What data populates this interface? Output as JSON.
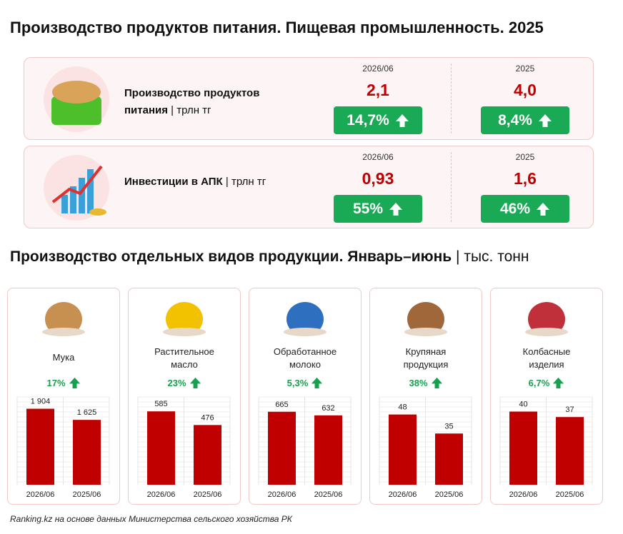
{
  "header": {
    "title": "Производство продуктов питания. Пищевая промышленность. 2025"
  },
  "kpis": [
    {
      "label": "Производство продуктов питания",
      "unit": "трлн тг",
      "columns": [
        {
          "period": "2026/06",
          "value": "2,1",
          "change": "14,7%"
        },
        {
          "period": "2025",
          "value": "4,0",
          "change": "8,4%"
        }
      ]
    },
    {
      "label": "Инвестиции в АПК",
      "unit": "трлн тг",
      "columns": [
        {
          "period": "2026/06",
          "value": "0,93",
          "change": "55%"
        },
        {
          "period": "2025",
          "value": "1,6",
          "change": "46%"
        }
      ]
    }
  ],
  "section": {
    "title": "Производство отдельных видов продукции. Январь–июнь",
    "unit": "тыс. тонн"
  },
  "chart_data": [
    {
      "type": "bar",
      "title": "Мука",
      "change": "17%",
      "categories": [
        "2026/06",
        "2025/06"
      ],
      "values": [
        1904,
        1625
      ],
      "value_labels": [
        "1 904",
        "1 625"
      ],
      "ylim": [
        0,
        2200
      ],
      "color": "#c00000"
    },
    {
      "type": "bar",
      "title": "Растительное масло",
      "change": "23%",
      "categories": [
        "2026/06",
        "2025/06"
      ],
      "values": [
        585,
        476
      ],
      "ylim": [
        0,
        700
      ],
      "color": "#c00000"
    },
    {
      "type": "bar",
      "title": "Обработанное молоко",
      "change": "5,3%",
      "categories": [
        "2026/06",
        "2025/06"
      ],
      "values": [
        665,
        632
      ],
      "ylim": [
        0,
        800
      ],
      "color": "#c00000"
    },
    {
      "type": "bar",
      "title": "Крупяная продукция",
      "change": "38%",
      "categories": [
        "2026/06",
        "2025/06"
      ],
      "values": [
        48,
        35
      ],
      "ylim": [
        0,
        60
      ],
      "color": "#c00000"
    },
    {
      "type": "bar",
      "title": "Колбасные изделия",
      "change": "6,7%",
      "categories": [
        "2026/06",
        "2025/06"
      ],
      "values": [
        40,
        37
      ],
      "ylim": [
        0,
        48
      ],
      "color": "#c00000"
    }
  ],
  "footer": {
    "source": "Ranking.kz на основе данных Министерства сельского хозяйства РК"
  }
}
